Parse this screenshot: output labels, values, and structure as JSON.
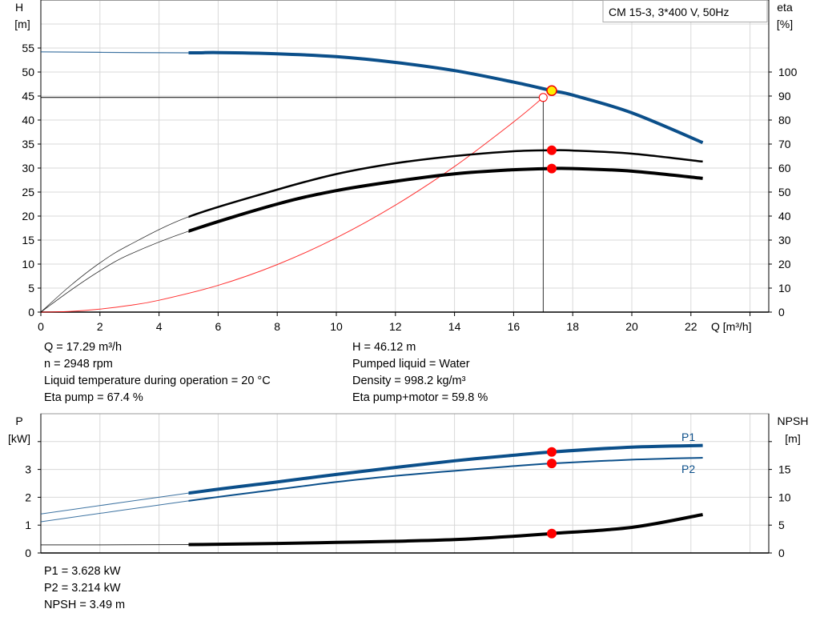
{
  "chart_data": [
    {
      "type": "line",
      "legend_box": "CM 15-3, 3*400 V, 50Hz",
      "xlabel": "Q [m³/h]",
      "ylabel_left": [
        "H",
        "[m]"
      ],
      "ylabel_right": [
        "eta",
        "[%]"
      ],
      "xlim": [
        0,
        24
      ],
      "ylim_left": [
        0,
        65
      ],
      "ylim_right": [
        0,
        130
      ],
      "x_ticks": [
        "0",
        "2",
        "4",
        "6",
        "8",
        "10",
        "12",
        "14",
        "16",
        "18",
        "20",
        "22"
      ],
      "y_ticks_left": [
        "0",
        "5",
        "10",
        "15",
        "20",
        "25",
        "30",
        "35",
        "40",
        "45",
        "50",
        "55"
      ],
      "y_ticks_right": [
        "0",
        "10",
        "20",
        "30",
        "40",
        "50",
        "60",
        "70",
        "80",
        "90",
        "100"
      ],
      "grid": true,
      "series": [
        {
          "id": "H",
          "axis": "left",
          "color": "#0b4f8a",
          "x": [
            0,
            2,
            5,
            6,
            8,
            10,
            12,
            14,
            16,
            17.29,
            18,
            20,
            22.4
          ],
          "y": [
            54.2,
            54.1,
            54,
            54.05,
            53.8,
            53.2,
            52,
            50.3,
            47.9,
            46.12,
            45.2,
            41.5,
            35.3
          ]
        },
        {
          "id": "eta-pump",
          "axis": "right",
          "color": "#000000",
          "x": [
            0,
            1,
            2,
            3,
            5,
            8,
            10,
            12,
            14,
            16,
            17.29,
            18,
            20,
            22.4
          ],
          "y": [
            0,
            11,
            20.5,
            28,
            39.7,
            51,
            57.5,
            62,
            65,
            67,
            67.4,
            67.3,
            66,
            62.7
          ]
        },
        {
          "id": "eta-pump-motor",
          "axis": "right",
          "color": "#000000",
          "x": [
            0,
            1,
            2,
            3,
            5,
            8,
            10,
            12,
            14,
            16,
            17.29,
            18,
            20,
            22.4
          ],
          "y": [
            0,
            9,
            17.2,
            24,
            33.7,
            45,
            50.6,
            54.5,
            57.6,
            59.3,
            59.8,
            59.8,
            58.7,
            55.7
          ]
        },
        {
          "id": "system-curve",
          "axis": "left",
          "color": "#ff0000",
          "x": [
            0,
            1,
            2,
            3,
            4,
            6,
            8,
            10,
            12,
            14,
            16,
            17
          ],
          "y": [
            0,
            0.15,
            0.62,
            1.39,
            2.47,
            5.57,
            9.9,
            15.47,
            22.28,
            30.32,
            39.6,
            44.7
          ]
        }
      ],
      "duty_point": {
        "Q": 17.29,
        "H": 46.12,
        "eta_pump": 67.4,
        "eta_pump_motor": 59.8
      },
      "requested_point": {
        "Q": 17,
        "H": 44.7
      }
    },
    {
      "type": "line",
      "ylabel_left": [
        "P",
        "[kW]"
      ],
      "ylabel_right": [
        "NPSH",
        "[m]"
      ],
      "xlim": [
        0,
        24
      ],
      "ylim_left": [
        0,
        5
      ],
      "ylim_right": [
        0,
        25
      ],
      "y_ticks_left": [
        "0",
        "1",
        "2",
        "3"
      ],
      "y_ticks_right": [
        "0",
        "5",
        "10",
        "15"
      ],
      "grid": true,
      "series": [
        {
          "id": "P1",
          "name": "P1",
          "axis": "left",
          "color": "#0b4f8a",
          "x": [
            0,
            5,
            8,
            10,
            12,
            14,
            16,
            17.29,
            20,
            22.4
          ],
          "y": [
            1.4,
            2.15,
            2.55,
            2.82,
            3.07,
            3.31,
            3.51,
            3.628,
            3.8,
            3.86
          ]
        },
        {
          "id": "P2",
          "name": "P2",
          "axis": "left",
          "color": "#0b4f8a",
          "x": [
            0,
            5,
            8,
            10,
            12,
            14,
            16,
            17.29,
            20,
            22.4
          ],
          "y": [
            1.12,
            1.87,
            2.28,
            2.55,
            2.77,
            2.95,
            3.12,
            3.214,
            3.35,
            3.42
          ]
        },
        {
          "id": "NPSH",
          "axis": "right",
          "color": "#000000",
          "x": [
            0,
            5,
            8,
            10,
            12,
            14,
            16,
            17.29,
            20,
            22.4
          ],
          "y": [
            1.45,
            1.5,
            1.7,
            1.9,
            2.1,
            2.4,
            3.0,
            3.49,
            4.6,
            6.9
          ]
        }
      ],
      "duty_point": {
        "Q": 17.29,
        "P1": 3.628,
        "P2": 3.214,
        "NPSH": 3.49
      }
    }
  ],
  "info_top_left": [
    "Q = 17.29 m³/h",
    "n = 2948 rpm",
    "Liquid temperature during operation = 20 °C",
    "Eta pump = 67.4 %"
  ],
  "info_top_right": [
    "H = 46.12 m",
    "Pumped liquid = Water",
    "Density = 998.2 kg/m³",
    "Eta pump+motor = 59.8 %"
  ],
  "info_bottom": [
    "P1 = 3.628 kW",
    "P2 = 3.214 kW",
    "NPSH = 3.49 m"
  ]
}
